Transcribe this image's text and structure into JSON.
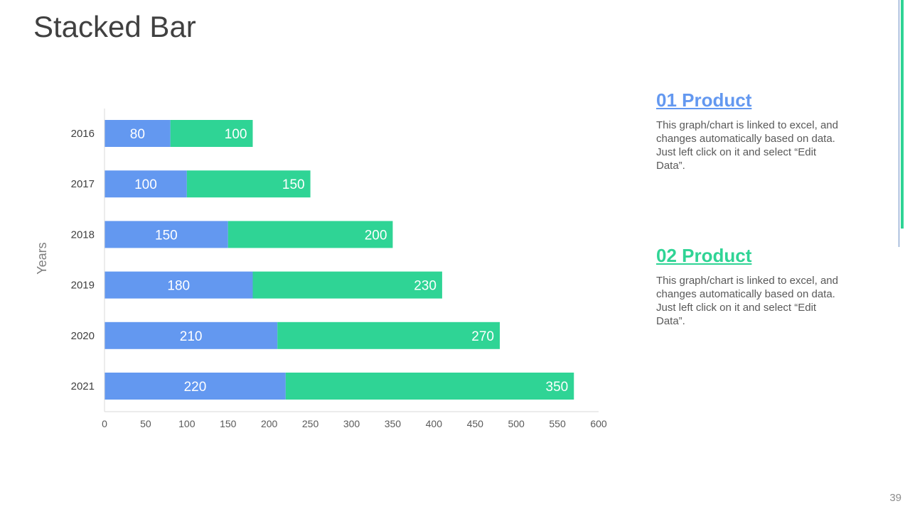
{
  "title": "Stacked Bar",
  "page_number": "39",
  "colors": {
    "series1": "#6398f0",
    "series2": "#2fd495",
    "accent": "#2fd495"
  },
  "products": [
    {
      "heading": "01 Product",
      "color": "#6398f0",
      "text": "This graph/chart is linked to excel, and changes automatically based on data. Just left click on it and select “Edit Data”."
    },
    {
      "heading": "02 Product",
      "color": "#2fd495",
      "text": "This graph/chart is linked to excel, and changes automatically based on data. Just left click on it and select “Edit Data”."
    }
  ],
  "chart_data": {
    "type": "bar",
    "orientation": "horizontal",
    "stacked": true,
    "title": "",
    "xlabel": "",
    "ylabel": "Years",
    "categories": [
      "2016",
      "2017",
      "2018",
      "2019",
      "2020",
      "2021"
    ],
    "series": [
      {
        "values": [
          80,
          100,
          150,
          180,
          210,
          220
        ],
        "color": "#6398f0"
      },
      {
        "values": [
          100,
          150,
          200,
          230,
          270,
          350
        ],
        "color": "#2fd495"
      }
    ],
    "xlim": [
      0,
      600
    ],
    "xticks": [
      0,
      50,
      100,
      150,
      200,
      250,
      300,
      350,
      400,
      450,
      500,
      550,
      600
    ],
    "grid": false,
    "legend": "none",
    "data_labels": true
  }
}
